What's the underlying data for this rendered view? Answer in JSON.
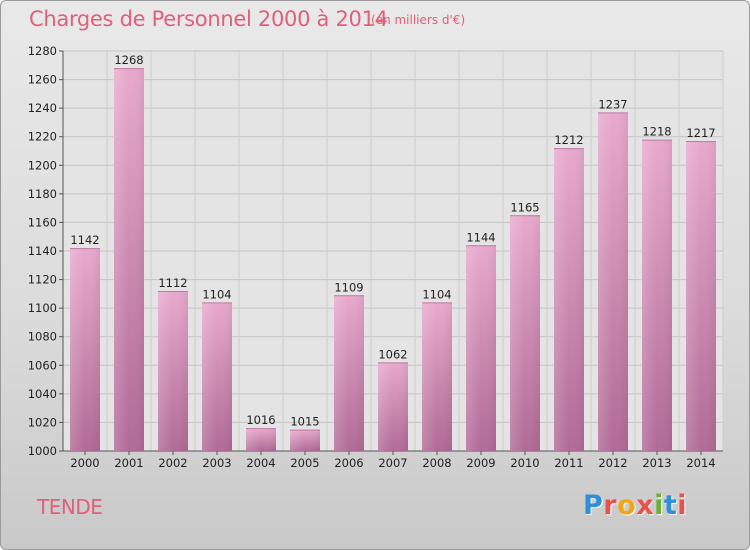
{
  "header": {
    "title": "Charges de Personnel 2000 à 2014",
    "unit": "(en milliers d'€)"
  },
  "footer": {
    "commune": "TENDE",
    "logo": "Proxiti"
  },
  "colors": {
    "title": "#e0607a",
    "bar_light": "#e8a9cc",
    "bar_dark": "#b06a96",
    "logo_letters": [
      "#2e8ed8",
      "#e8524a",
      "#f2a51a",
      "#e8524a",
      "#6bb232",
      "#2e8ed8",
      "#e8524a"
    ]
  },
  "chart_data": {
    "type": "bar",
    "title": "Charges de Personnel 2000 à 2014",
    "subtitle": "(en milliers d'€)",
    "xlabel": "",
    "ylabel": "",
    "categories": [
      "2000",
      "2001",
      "2002",
      "2003",
      "2004",
      "2005",
      "2006",
      "2007",
      "2008",
      "2009",
      "2010",
      "2011",
      "2012",
      "2013",
      "2014"
    ],
    "values": [
      1142,
      1268,
      1112,
      1104,
      1016,
      1015,
      1109,
      1062,
      1104,
      1144,
      1165,
      1212,
      1237,
      1218,
      1217
    ],
    "ylim": [
      1000,
      1280
    ],
    "yticks": [
      1000,
      1020,
      1040,
      1060,
      1080,
      1100,
      1120,
      1140,
      1160,
      1180,
      1200,
      1220,
      1240,
      1260,
      1280
    ],
    "grid": true,
    "legend": "none"
  }
}
